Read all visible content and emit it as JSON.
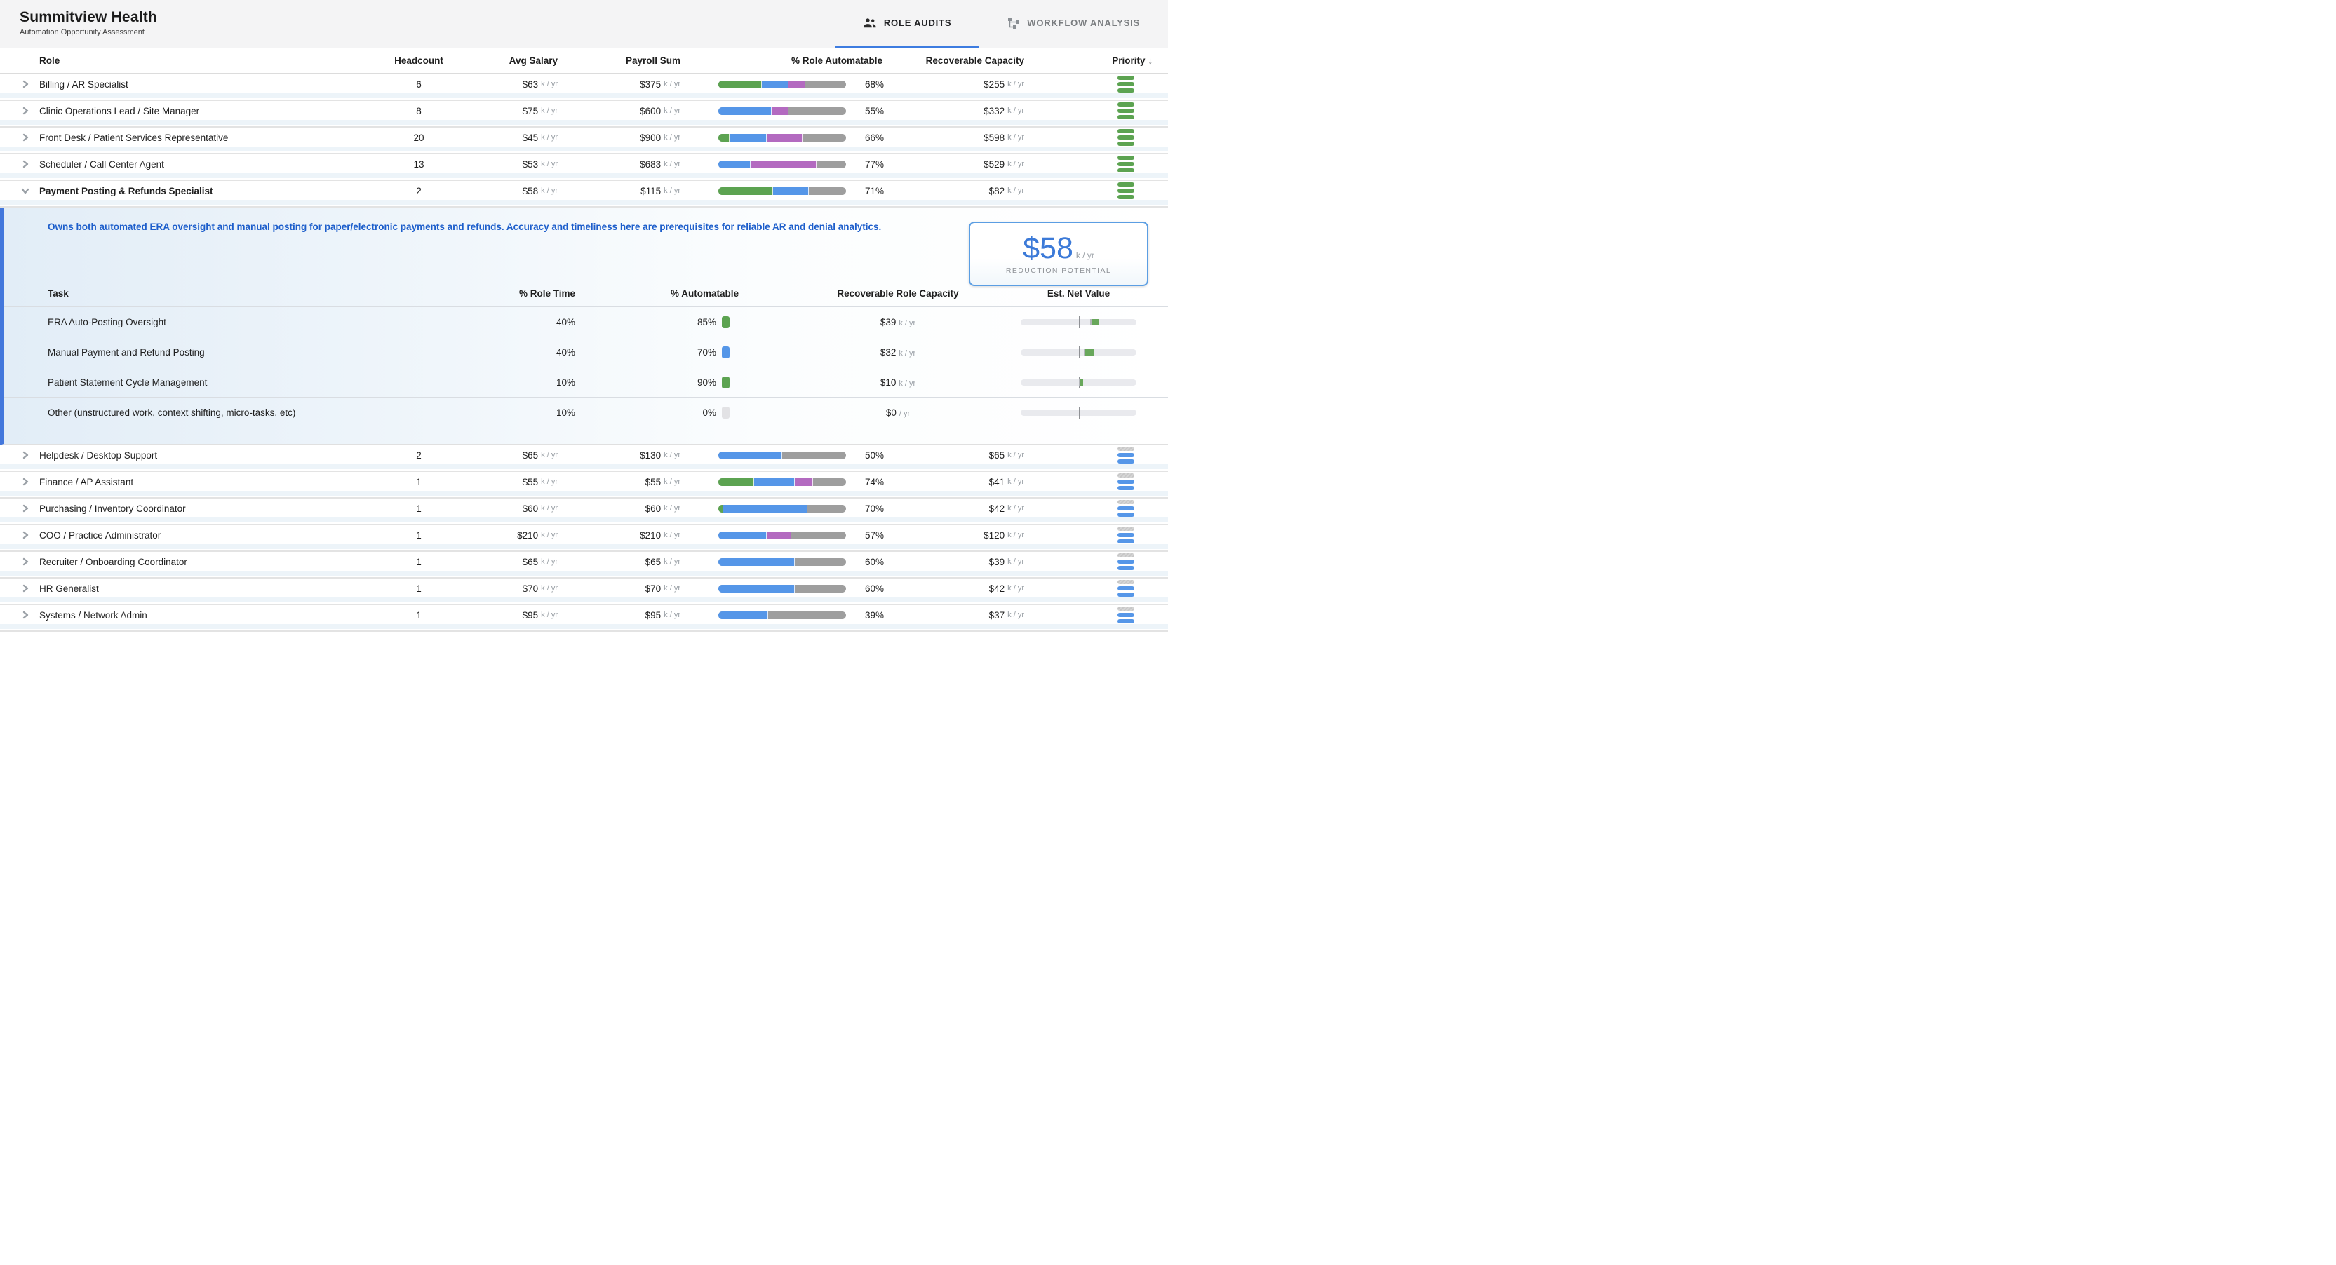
{
  "header": {
    "title": "Summitview Health",
    "subtitle": "Automation Opportunity Assessment"
  },
  "tabs": [
    {
      "label": "ROLE AUDITS",
      "icon": "people-icon",
      "active": true
    },
    {
      "label": "WORKFLOW ANALYSIS",
      "icon": "workflow-icon",
      "active": false
    }
  ],
  "colors": {
    "green": "#5ca351",
    "blue": "#5596e8",
    "purple": "#b36ac0",
    "bar_gray": "#9e9e9e",
    "chip_gray": "#e2e2e5",
    "bullet_green": "#68a75b",
    "bullet_gray": "#b3b6ba",
    "accent": "#3d7ce0"
  },
  "table": {
    "columns": [
      "Role",
      "Headcount",
      "Avg Salary",
      "Payroll Sum",
      "% Role Automatable",
      "Recoverable Capacity",
      "Priority"
    ],
    "sort": {
      "column": "Priority",
      "direction": "desc",
      "arrow": "↓"
    },
    "rows": [
      {
        "role": "Billing / AR Specialist",
        "headcount": "6",
        "avg_salary": {
          "v": "$63",
          "s": "k / yr"
        },
        "payroll": {
          "v": "$375",
          "s": "k / yr"
        },
        "segments": [
          {
            "c": "green",
            "w": 34
          },
          {
            "c": "blue",
            "w": 21
          },
          {
            "c": "purple",
            "w": 13
          }
        ],
        "automatable_pct": "68%",
        "recoverable": {
          "v": "$255",
          "s": "k / yr"
        },
        "priority": "high",
        "expanded": false
      },
      {
        "role": "Clinic Operations Lead / Site Manager",
        "headcount": "8",
        "avg_salary": {
          "v": "$75",
          "s": "k / yr"
        },
        "payroll": {
          "v": "$600",
          "s": "k / yr"
        },
        "segments": [
          {
            "c": "blue",
            "w": 42
          },
          {
            "c": "purple",
            "w": 13
          }
        ],
        "automatable_pct": "55%",
        "recoverable": {
          "v": "$332",
          "s": "k / yr"
        },
        "priority": "high",
        "expanded": false
      },
      {
        "role": "Front Desk / Patient Services Representative",
        "headcount": "20",
        "avg_salary": {
          "v": "$45",
          "s": "k / yr"
        },
        "payroll": {
          "v": "$900",
          "s": "k / yr"
        },
        "segments": [
          {
            "c": "green",
            "w": 9
          },
          {
            "c": "blue",
            "w": 29
          },
          {
            "c": "purple",
            "w": 28
          }
        ],
        "automatable_pct": "66%",
        "recoverable": {
          "v": "$598",
          "s": "k / yr"
        },
        "priority": "high",
        "expanded": false
      },
      {
        "role": "Scheduler / Call Center Agent",
        "headcount": "13",
        "avg_salary": {
          "v": "$53",
          "s": "k / yr"
        },
        "payroll": {
          "v": "$683",
          "s": "k / yr"
        },
        "segments": [
          {
            "c": "blue",
            "w": 25
          },
          {
            "c": "purple",
            "w": 52
          }
        ],
        "automatable_pct": "77%",
        "recoverable": {
          "v": "$529",
          "s": "k / yr"
        },
        "priority": "high",
        "expanded": false
      },
      {
        "role": "Payment Posting & Refunds Specialist",
        "headcount": "2",
        "avg_salary": {
          "v": "$58",
          "s": "k / yr"
        },
        "payroll": {
          "v": "$115",
          "s": "k / yr"
        },
        "segments": [
          {
            "c": "green",
            "w": 43
          },
          {
            "c": "blue",
            "w": 28
          }
        ],
        "automatable_pct": "71%",
        "recoverable": {
          "v": "$82",
          "s": "k / yr"
        },
        "priority": "high",
        "expanded": true
      },
      {
        "role": "Helpdesk / Desktop Support",
        "headcount": "2",
        "avg_salary": {
          "v": "$65",
          "s": "k / yr"
        },
        "payroll": {
          "v": "$130",
          "s": "k / yr"
        },
        "segments": [
          {
            "c": "blue",
            "w": 50
          }
        ],
        "automatable_pct": "50%",
        "recoverable": {
          "v": "$65",
          "s": "k / yr"
        },
        "priority": "medium",
        "expanded": false
      },
      {
        "role": "Finance / AP Assistant",
        "headcount": "1",
        "avg_salary": {
          "v": "$55",
          "s": "k / yr"
        },
        "payroll": {
          "v": "$55",
          "s": "k / yr"
        },
        "segments": [
          {
            "c": "green",
            "w": 28
          },
          {
            "c": "blue",
            "w": 32
          },
          {
            "c": "purple",
            "w": 14
          }
        ],
        "automatable_pct": "74%",
        "recoverable": {
          "v": "$41",
          "s": "k / yr"
        },
        "priority": "medium",
        "expanded": false
      },
      {
        "role": "Purchasing / Inventory Coordinator",
        "headcount": "1",
        "avg_salary": {
          "v": "$60",
          "s": "k / yr"
        },
        "payroll": {
          "v": "$60",
          "s": "k / yr"
        },
        "segments": [
          {
            "c": "green",
            "w": 4
          },
          {
            "c": "blue",
            "w": 66
          }
        ],
        "automatable_pct": "70%",
        "recoverable": {
          "v": "$42",
          "s": "k / yr"
        },
        "priority": "medium",
        "expanded": false
      },
      {
        "role": "COO / Practice Administrator",
        "headcount": "1",
        "avg_salary": {
          "v": "$210",
          "s": "k / yr"
        },
        "payroll": {
          "v": "$210",
          "s": "k / yr"
        },
        "segments": [
          {
            "c": "blue",
            "w": 38
          },
          {
            "c": "purple",
            "w": 19
          }
        ],
        "automatable_pct": "57%",
        "recoverable": {
          "v": "$120",
          "s": "k / yr"
        },
        "priority": "medium",
        "expanded": false
      },
      {
        "role": "Recruiter / Onboarding Coordinator",
        "headcount": "1",
        "avg_salary": {
          "v": "$65",
          "s": "k / yr"
        },
        "payroll": {
          "v": "$65",
          "s": "k / yr"
        },
        "segments": [
          {
            "c": "blue",
            "w": 60
          }
        ],
        "automatable_pct": "60%",
        "recoverable": {
          "v": "$39",
          "s": "k / yr"
        },
        "priority": "medium",
        "expanded": false
      },
      {
        "role": "HR Generalist",
        "headcount": "1",
        "avg_salary": {
          "v": "$70",
          "s": "k / yr"
        },
        "payroll": {
          "v": "$70",
          "s": "k / yr"
        },
        "segments": [
          {
            "c": "blue",
            "w": 60
          }
        ],
        "automatable_pct": "60%",
        "recoverable": {
          "v": "$42",
          "s": "k / yr"
        },
        "priority": "medium",
        "expanded": false
      },
      {
        "role": "Systems / Network Admin",
        "headcount": "1",
        "avg_salary": {
          "v": "$95",
          "s": "k / yr"
        },
        "payroll": {
          "v": "$95",
          "s": "k / yr"
        },
        "segments": [
          {
            "c": "blue",
            "w": 39
          }
        ],
        "automatable_pct": "39%",
        "recoverable": {
          "v": "$37",
          "s": "k / yr"
        },
        "priority": "medium",
        "expanded": false
      }
    ]
  },
  "expanded_detail": {
    "description": "Owns both automated ERA oversight and manual posting for paper/electronic payments and refunds. Accuracy and timeliness here are prerequisites for reliable AR and denial analytics.",
    "reduction_potential": {
      "value": "$58",
      "suffix": "k / yr",
      "label": "REDUCTION POTENTIAL"
    },
    "task_columns": [
      "Task",
      "% Role Time",
      "% Automatable",
      "Recoverable Role Capacity",
      "Est. Net Value"
    ],
    "tasks": [
      {
        "task": "ERA Auto-Posting Oversight",
        "role_time": "40%",
        "automatable": "85%",
        "chip": "green",
        "recoverable": {
          "v": "$39",
          "s": "k / yr"
        },
        "bullet": [
          {
            "c": "bullet_gray",
            "l": 60.3,
            "w": 1.2
          },
          {
            "c": "bullet_green",
            "l": 61.5,
            "w": 5.8
          }
        ]
      },
      {
        "task": "Manual Payment and Refund Posting",
        "role_time": "40%",
        "automatable": "70%",
        "chip": "blue",
        "recoverable": {
          "v": "$32",
          "s": "k / yr"
        },
        "bullet": [
          {
            "c": "bullet_gray",
            "l": 54.8,
            "w": 1.2
          },
          {
            "c": "bullet_green",
            "l": 56.0,
            "w": 7.0
          }
        ]
      },
      {
        "task": "Patient Statement Cycle Management",
        "role_time": "10%",
        "automatable": "90%",
        "chip": "green",
        "recoverable": {
          "v": "$10",
          "s": "k / yr"
        },
        "bullet": [
          {
            "c": "bullet_gray",
            "l": 50.3,
            "w": 0.9
          },
          {
            "c": "bullet_green",
            "l": 51.2,
            "w": 2.6
          }
        ]
      },
      {
        "task": "Other (unstructured work, context shifting, micro-tasks, etc)",
        "role_time": "10%",
        "automatable": "0%",
        "chip": "chip_gray",
        "recoverable": {
          "v": "$0",
          "s": "/ yr"
        },
        "bullet": []
      }
    ]
  }
}
